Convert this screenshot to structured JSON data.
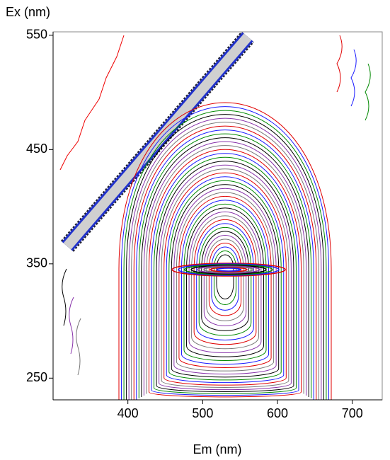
{
  "chart_data": {
    "type": "contour",
    "x_label": "Em (nm)",
    "y_label": "Ex (nm)",
    "xlim": [
      300,
      740
    ],
    "ylim": [
      231,
      553
    ],
    "xticks": [
      400,
      500,
      600,
      700
    ],
    "yticks": [
      250,
      350,
      450,
      550
    ]
  }
}
